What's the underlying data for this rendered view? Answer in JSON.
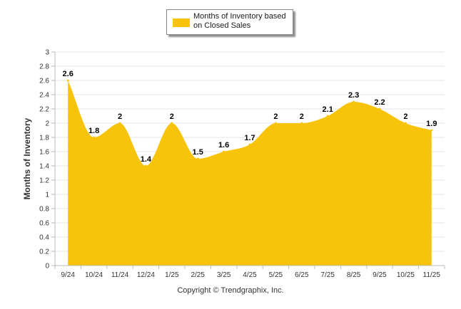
{
  "colors": {
    "fill": "#F7C40B",
    "grid": "#E6E6E6",
    "axis": "#BBBBBB",
    "text": "#333333"
  },
  "legend": {
    "label": "Months of Inventory based on Closed Sales"
  },
  "copyright": "Copyright © Trendgraphix, Inc.",
  "chart_data": {
    "type": "area",
    "title": "",
    "xlabel": "",
    "ylabel": "Months of Inventory",
    "categories": [
      "9/24",
      "10/24",
      "11/24",
      "12/24",
      "1/25",
      "2/25",
      "3/25",
      "4/25",
      "5/25",
      "6/25",
      "7/25",
      "8/25",
      "9/25",
      "10/25",
      "11/25"
    ],
    "series": [
      {
        "name": "Months of Inventory based on Closed Sales",
        "values": [
          2.6,
          1.8,
          2,
          1.4,
          2,
          1.5,
          1.6,
          1.7,
          2,
          2,
          2.1,
          2.3,
          2.2,
          2,
          1.9
        ],
        "labels": [
          "2.6",
          "1.8",
          "2",
          "1.4",
          "2",
          "1.5",
          "1.6",
          "1.7",
          "2",
          "2",
          "2.1",
          "2.3",
          "2.2",
          "2",
          "1.9"
        ]
      }
    ],
    "ylim": [
      0,
      3
    ],
    "yticks": [
      "0",
      "0.2",
      "0.4",
      "0.6",
      "0.8",
      "1",
      "1.2",
      "1.4",
      "1.6",
      "1.8",
      "2",
      "2.2",
      "2.4",
      "2.6",
      "2.8",
      "3"
    ],
    "grid": true,
    "legend_position": "top-center"
  }
}
